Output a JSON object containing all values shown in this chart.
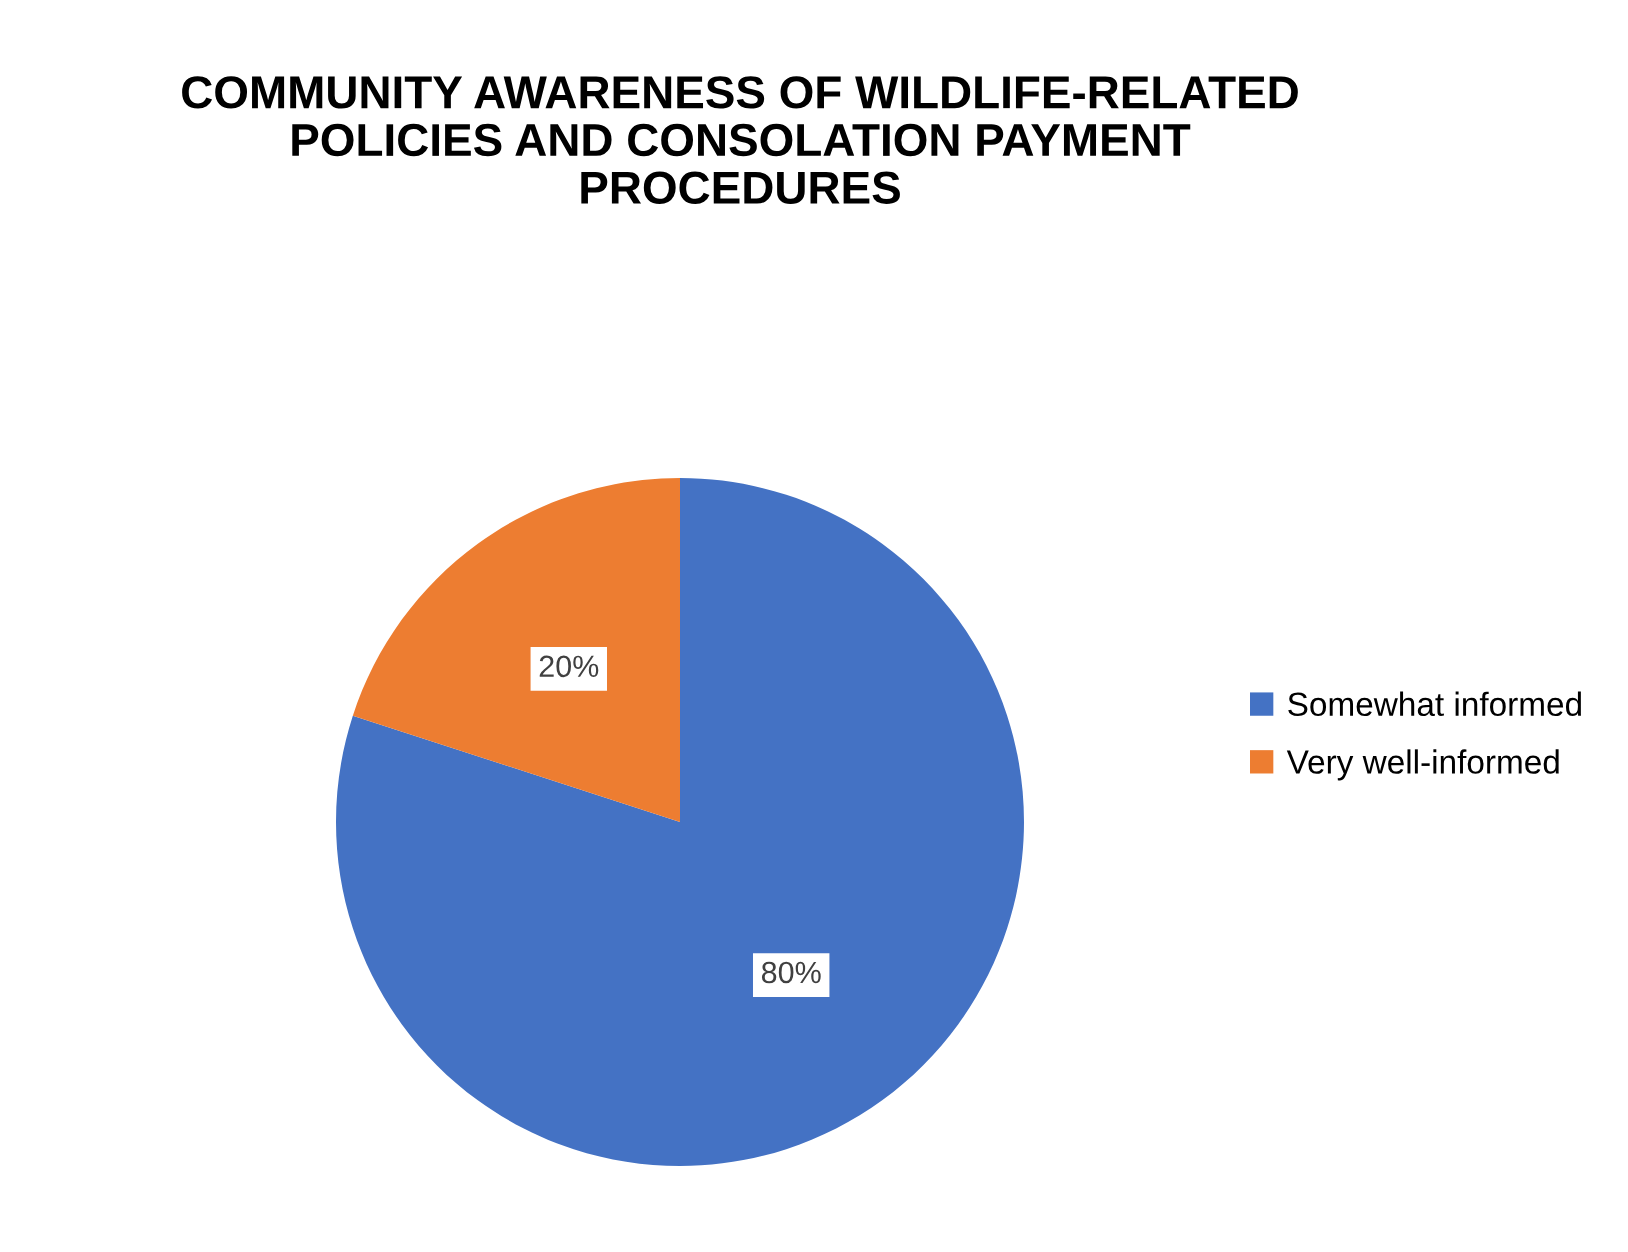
{
  "chart_data": {
    "type": "pie",
    "title": "COMMUNITY AWARENESS OF WILDLIFE-RELATED\nPOLICIES AND CONSOLATION PAYMENT\nPROCEDURES",
    "categories": [
      "Somewhat informed",
      "Very well-informed"
    ],
    "values": [
      80,
      20
    ],
    "colors": [
      "#4472c4",
      "#ed7d31"
    ],
    "value_labels": [
      "80%",
      "20%"
    ],
    "legend": "right"
  }
}
